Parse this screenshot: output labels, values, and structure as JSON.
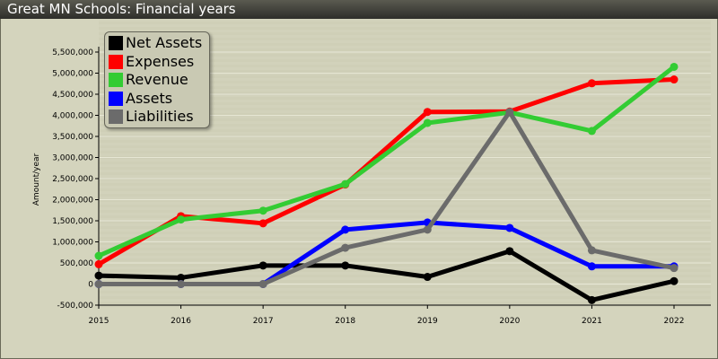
{
  "header": {
    "title": "Great MN Schools: Financial years"
  },
  "chart_data": {
    "type": "line",
    "title": "Great MN Schools: Financial years",
    "ylabel": "Amount/year",
    "xlabel": "",
    "x": [
      2015,
      2016,
      2017,
      2018,
      2019,
      2020,
      2021,
      2022
    ],
    "ylim": [
      -500000,
      5500000
    ],
    "yticks": [
      -500000,
      0,
      500000,
      1000000,
      1500000,
      2000000,
      2500000,
      3000000,
      3500000,
      4000000,
      4500000,
      5000000,
      5500000
    ],
    "ytick_labels": [
      "-500,000",
      "0",
      "500,000",
      "1,000,000",
      "1,500,000",
      "2,000,000",
      "2,500,000",
      "3,000,000",
      "3,500,000",
      "4,000,000",
      "4,500,000",
      "5,000,000",
      "5,500,000"
    ],
    "legend_position": "top-left",
    "series": [
      {
        "name": "Net Assets",
        "color": "#000000",
        "values": [
          200000,
          150000,
          440000,
          440000,
          170000,
          780000,
          -380000,
          70000
        ]
      },
      {
        "name": "Expenses",
        "color": "#ff0000",
        "values": [
          470000,
          1610000,
          1440000,
          2360000,
          4080000,
          4090000,
          4760000,
          4850000
        ]
      },
      {
        "name": "Revenue",
        "color": "#33cc33",
        "values": [
          670000,
          1530000,
          1740000,
          2370000,
          3820000,
          4070000,
          3630000,
          5150000
        ]
      },
      {
        "name": "Assets",
        "color": "#0000ff",
        "values": [
          0,
          0,
          0,
          1290000,
          1460000,
          1330000,
          420000,
          420000
        ]
      },
      {
        "name": "Liabilities",
        "color": "#6b6b6b",
        "values": [
          0,
          0,
          0,
          860000,
          1290000,
          4080000,
          800000,
          380000
        ]
      }
    ]
  }
}
